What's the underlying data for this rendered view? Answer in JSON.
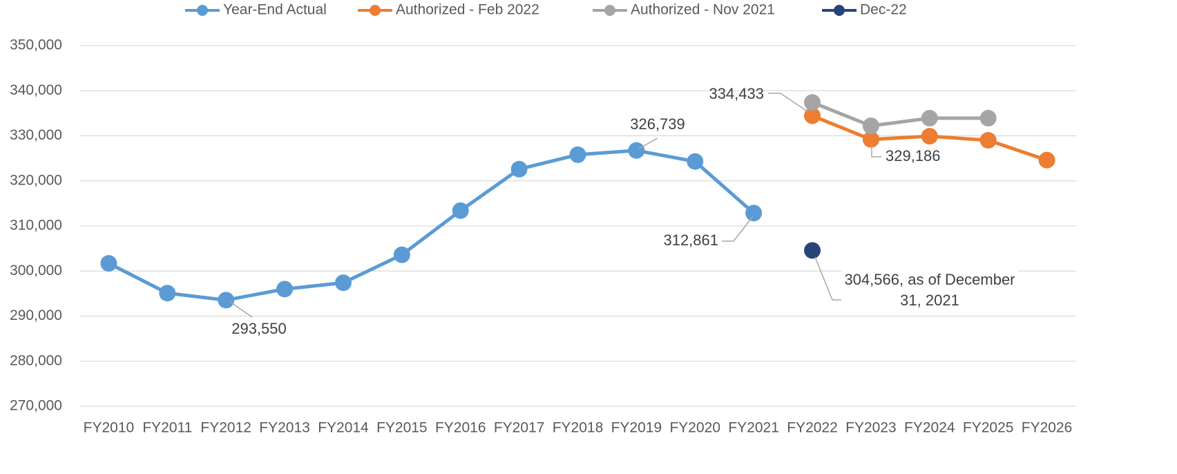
{
  "chart_data": {
    "type": "line",
    "categories": [
      "FY2010",
      "FY2011",
      "FY2012",
      "FY2013",
      "FY2014",
      "FY2015",
      "FY2016",
      "FY2017",
      "FY2018",
      "FY2019",
      "FY2020",
      "FY2021",
      "FY2022",
      "FY2023",
      "FY2024",
      "FY2025",
      "FY2026"
    ],
    "series": [
      {
        "name": "Year-End Actual",
        "color": "#5b9bd5",
        "values": [
          301700,
          295100,
          293550,
          296000,
          297400,
          303600,
          313400,
          322600,
          325800,
          326739,
          324300,
          312861,
          null,
          null,
          null,
          null,
          null
        ],
        "value_labels": [
          null,
          null,
          "293,550",
          null,
          null,
          null,
          null,
          null,
          null,
          "326,739",
          null,
          "312,861",
          null,
          null,
          null,
          null,
          null
        ]
      },
      {
        "name": "Authorized - Feb 2022",
        "color": "#ed7d31",
        "values": [
          null,
          null,
          null,
          null,
          null,
          null,
          null,
          null,
          null,
          null,
          null,
          null,
          334433,
          329186,
          329900,
          329000,
          324600
        ],
        "value_labels": [
          null,
          null,
          null,
          null,
          null,
          null,
          null,
          null,
          null,
          null,
          null,
          null,
          "334,433",
          "329,186",
          null,
          null,
          null
        ]
      },
      {
        "name": "Authorized - Nov 2021",
        "color": "#a5a5a5",
        "values": [
          null,
          null,
          null,
          null,
          null,
          null,
          null,
          null,
          null,
          null,
          null,
          null,
          337400,
          332200,
          333900,
          333900,
          null
        ]
      },
      {
        "name": "Dec-22",
        "color": "#264478",
        "values": [
          null,
          null,
          null,
          null,
          null,
          null,
          null,
          null,
          null,
          null,
          null,
          null,
          304566,
          null,
          null,
          null,
          null
        ],
        "value_labels": [
          null,
          null,
          null,
          null,
          null,
          null,
          null,
          null,
          null,
          null,
          null,
          null,
          "304,566, as of December 31, 2021",
          null,
          null,
          null,
          null
        ]
      }
    ],
    "ylim": [
      270000,
      350000
    ],
    "yticks": [
      {
        "value": 270000,
        "label": "270,000"
      },
      {
        "value": 280000,
        "label": "280,000"
      },
      {
        "value": 290000,
        "label": "290,000"
      },
      {
        "value": 300000,
        "label": "300,000"
      },
      {
        "value": 310000,
        "label": "310,000"
      },
      {
        "value": 320000,
        "label": "320,000"
      },
      {
        "value": 330000,
        "label": "330,000"
      },
      {
        "value": 340000,
        "label": "340,000"
      },
      {
        "value": 350000,
        "label": "350,000"
      }
    ],
    "grid": true,
    "legend": "top"
  }
}
